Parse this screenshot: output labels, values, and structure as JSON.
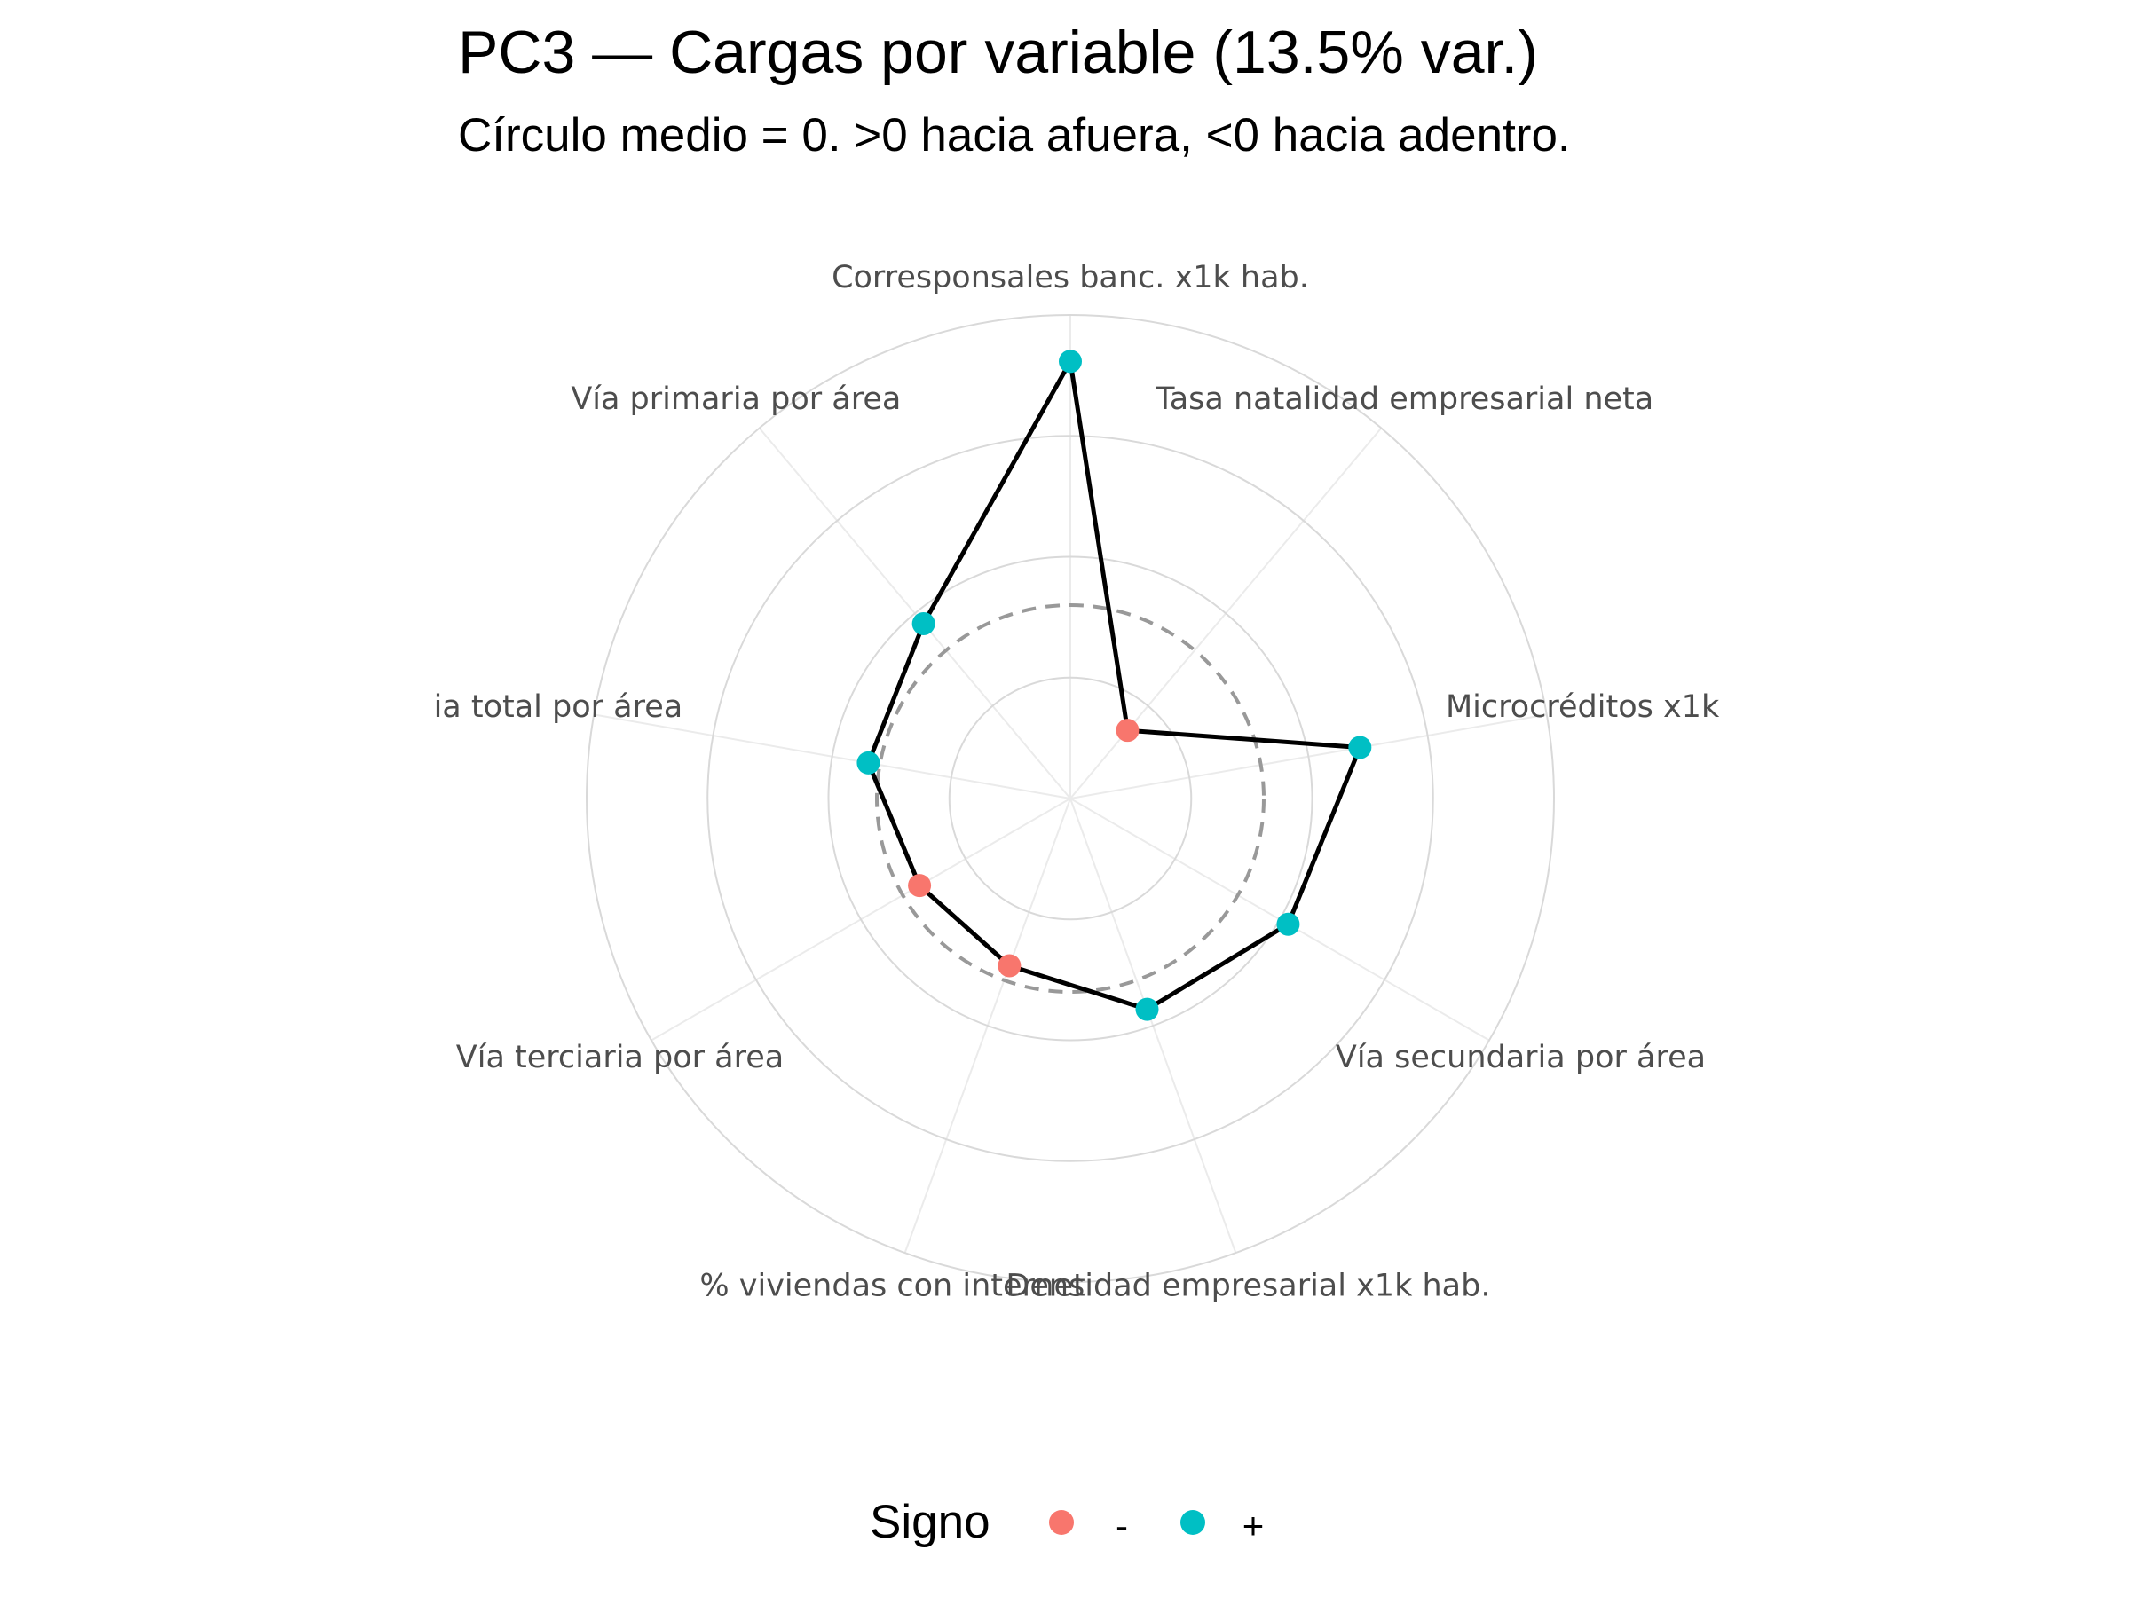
{
  "chart_data": {
    "type": "radar",
    "title": "PC3 — Cargas por variable (13.5% var.)",
    "subtitle": "Círculo medio = 0. >0 hacia afuera, <0 hacia adentro.",
    "categories": [
      "Corresponsales banc. x1k hab.",
      "Tasa natalidad empresarial neta",
      "Microcréditos x1k",
      "Vía secundaria por área",
      "Densidad empresarial x1k hab.",
      "% viviendas con internet",
      "Vía terciaria por área",
      "ia total por área",
      "Vía primaria por área"
    ],
    "values": [
      0.63,
      -0.27,
      0.26,
      0.15,
      0.08,
      -0.04,
      -0.05,
      0.03,
      0.09
    ],
    "signs": [
      "+",
      "-",
      "+",
      "+",
      "+",
      "-",
      "-",
      "+",
      "+"
    ],
    "rlim": [
      -0.5,
      0.75
    ],
    "zero_ring": 0,
    "grid": true,
    "legend": {
      "title": "Signo",
      "position": "bottom",
      "items": [
        {
          "label": "-",
          "color": "#F8766D"
        },
        {
          "label": "+",
          "color": "#00BFC4"
        }
      ]
    }
  }
}
